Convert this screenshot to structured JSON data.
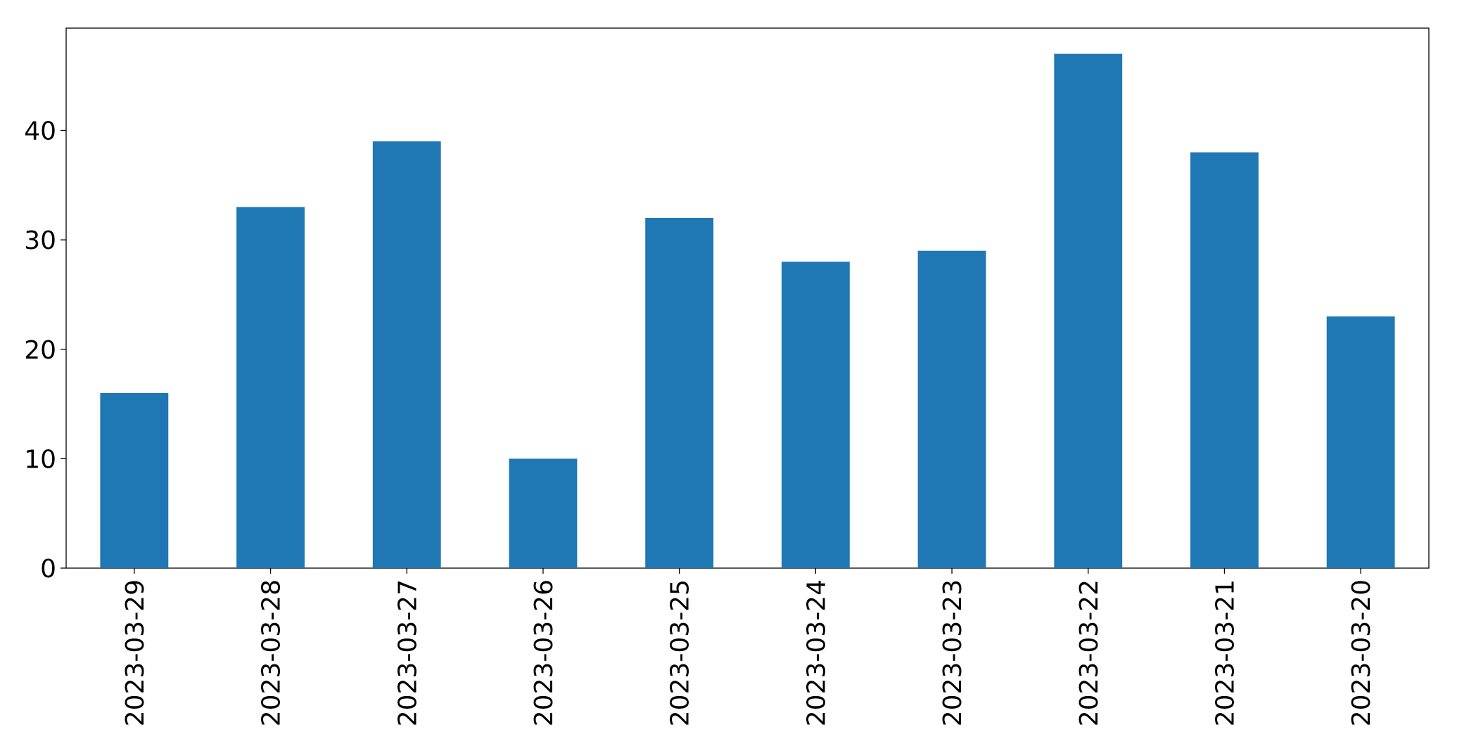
{
  "chart_data": {
    "type": "bar",
    "categories": [
      "2023-03-29",
      "2023-03-28",
      "2023-03-27",
      "2023-03-26",
      "2023-03-25",
      "2023-03-24",
      "2023-03-23",
      "2023-03-22",
      "2023-03-21",
      "2023-03-20"
    ],
    "values": [
      16,
      33,
      39,
      10,
      32,
      28,
      29,
      47,
      38,
      23
    ],
    "color": "#1f77b4",
    "ylim": [
      0,
      49.35
    ],
    "yticks": [
      0,
      10,
      20,
      30,
      40
    ],
    "grid": false
  }
}
